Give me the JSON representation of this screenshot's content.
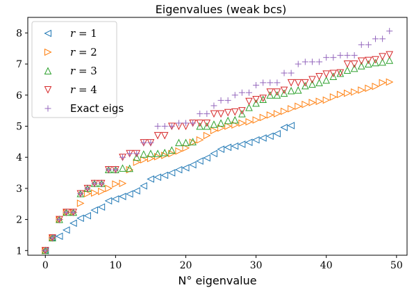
{
  "chart_data": {
    "type": "scatter",
    "title": "Eigenvalues (weak bcs)",
    "xlabel": "N° eigenvalue",
    "ylabel": "",
    "xlim": [
      -2.5,
      51.5
    ],
    "ylim": [
      0.85,
      8.5
    ],
    "xticks": [
      0,
      10,
      20,
      30,
      40,
      50
    ],
    "yticks": [
      1,
      2,
      3,
      4,
      5,
      6,
      7,
      8
    ],
    "legend_position": "upper-left",
    "series": [
      {
        "name": "r = 1",
        "marker": "triangle-left",
        "color": "#1f77b4",
        "x": [
          0,
          1,
          2,
          3,
          4,
          5,
          6,
          7,
          8,
          9,
          10,
          11,
          12,
          13,
          14,
          15,
          16,
          17,
          18,
          19,
          20,
          21,
          22,
          23,
          24,
          25,
          26,
          27,
          28,
          29,
          30,
          31,
          32,
          33,
          34,
          35
        ],
        "y": [
          1.0,
          1.41,
          1.46,
          1.66,
          1.88,
          2.04,
          2.12,
          2.3,
          2.4,
          2.6,
          2.66,
          2.74,
          2.82,
          2.92,
          3.08,
          3.3,
          3.36,
          3.42,
          3.5,
          3.6,
          3.66,
          3.76,
          3.88,
          3.98,
          4.12,
          4.26,
          4.32,
          4.36,
          4.42,
          4.48,
          4.56,
          4.62,
          4.68,
          4.76,
          4.96,
          5.02
        ]
      },
      {
        "name": "r = 2",
        "marker": "triangle-right",
        "color": "#ff7f0e",
        "x": [
          0,
          1,
          2,
          3,
          4,
          5,
          6,
          7,
          8,
          9,
          10,
          11,
          12,
          13,
          14,
          15,
          16,
          17,
          18,
          19,
          20,
          21,
          22,
          23,
          24,
          25,
          26,
          27,
          28,
          29,
          30,
          31,
          32,
          33,
          34,
          35,
          36,
          37,
          38,
          39,
          40,
          41,
          42,
          43,
          44,
          45,
          46,
          47,
          48,
          49
        ],
        "y": [
          1.0,
          1.41,
          2.0,
          2.23,
          2.23,
          2.52,
          2.83,
          2.85,
          2.9,
          3.0,
          3.14,
          3.16,
          3.6,
          3.84,
          3.92,
          3.96,
          4.02,
          4.06,
          4.12,
          4.2,
          4.3,
          4.48,
          4.56,
          4.7,
          4.86,
          4.94,
          5.0,
          5.04,
          5.1,
          5.14,
          5.2,
          5.28,
          5.36,
          5.4,
          5.48,
          5.56,
          5.64,
          5.7,
          5.76,
          5.8,
          5.84,
          5.94,
          6.02,
          6.06,
          6.1,
          6.16,
          6.22,
          6.28,
          6.4,
          6.42
        ]
      },
      {
        "name": "r = 3",
        "marker": "triangle-up",
        "color": "#2ca02c",
        "x": [
          0,
          1,
          2,
          3,
          4,
          5,
          6,
          7,
          8,
          9,
          10,
          11,
          12,
          13,
          14,
          15,
          16,
          17,
          18,
          19,
          20,
          21,
          22,
          23,
          24,
          25,
          26,
          27,
          28,
          29,
          30,
          31,
          32,
          33,
          34,
          35,
          36,
          37,
          38,
          39,
          40,
          41,
          42,
          43,
          44,
          45,
          46,
          47,
          48,
          49
        ],
        "y": [
          1.0,
          1.41,
          2.0,
          2.23,
          2.23,
          2.83,
          3.0,
          3.16,
          3.16,
          3.6,
          3.6,
          3.65,
          3.64,
          4.0,
          4.1,
          4.12,
          4.12,
          4.15,
          4.23,
          4.47,
          4.47,
          4.5,
          5.0,
          5.0,
          5.06,
          5.1,
          5.18,
          5.2,
          5.4,
          5.6,
          5.74,
          5.86,
          6.0,
          6.0,
          6.06,
          6.14,
          6.16,
          6.3,
          6.35,
          6.4,
          6.48,
          6.6,
          6.7,
          6.8,
          6.86,
          6.94,
          7.0,
          7.04,
          7.06,
          7.12
        ]
      },
      {
        "name": "r = 4",
        "marker": "triangle-down",
        "color": "#d62728",
        "x": [
          0,
          1,
          2,
          3,
          4,
          5,
          6,
          7,
          8,
          9,
          10,
          11,
          12,
          13,
          14,
          15,
          16,
          17,
          18,
          19,
          20,
          21,
          22,
          23,
          24,
          25,
          26,
          27,
          28,
          29,
          30,
          31,
          32,
          33,
          34,
          35,
          36,
          37,
          38,
          39,
          40,
          41,
          42,
          43,
          44,
          45,
          46,
          47,
          48,
          49
        ],
        "y": [
          1.0,
          1.41,
          2.0,
          2.23,
          2.23,
          2.83,
          3.0,
          3.16,
          3.16,
          3.6,
          3.6,
          4.0,
          4.12,
          4.12,
          4.47,
          4.47,
          4.7,
          4.7,
          5.0,
          5.0,
          5.0,
          5.1,
          5.1,
          5.1,
          5.4,
          5.4,
          5.44,
          5.46,
          5.5,
          5.8,
          5.86,
          5.9,
          6.1,
          6.1,
          6.16,
          6.4,
          6.4,
          6.4,
          6.5,
          6.6,
          6.68,
          6.7,
          6.72,
          7.0,
          7.0,
          7.1,
          7.12,
          7.14,
          7.24,
          7.3
        ]
      },
      {
        "name": "Exact eigs",
        "marker": "plus",
        "color": "#9467bd",
        "x": [
          0,
          1,
          2,
          3,
          4,
          5,
          6,
          7,
          8,
          9,
          10,
          11,
          12,
          13,
          14,
          15,
          16,
          17,
          18,
          19,
          20,
          21,
          22,
          23,
          24,
          25,
          26,
          27,
          28,
          29,
          30,
          31,
          32,
          33,
          34,
          35,
          36,
          37,
          38,
          39,
          40,
          41,
          42,
          43,
          44,
          45,
          46,
          47,
          48,
          49
        ],
        "y": [
          1.0,
          1.41,
          2.0,
          2.23,
          2.23,
          2.83,
          3.0,
          3.16,
          3.16,
          3.6,
          3.6,
          4.0,
          4.12,
          4.12,
          4.47,
          4.47,
          5.0,
          5.0,
          5.0,
          5.1,
          5.1,
          5.1,
          5.4,
          5.4,
          5.66,
          5.83,
          5.83,
          6.0,
          6.08,
          6.08,
          6.32,
          6.4,
          6.4,
          6.4,
          6.71,
          6.71,
          7.0,
          7.07,
          7.07,
          7.07,
          7.21,
          7.21,
          7.28,
          7.28,
          7.28,
          7.62,
          7.62,
          7.81,
          7.81,
          8.06
        ]
      }
    ]
  }
}
